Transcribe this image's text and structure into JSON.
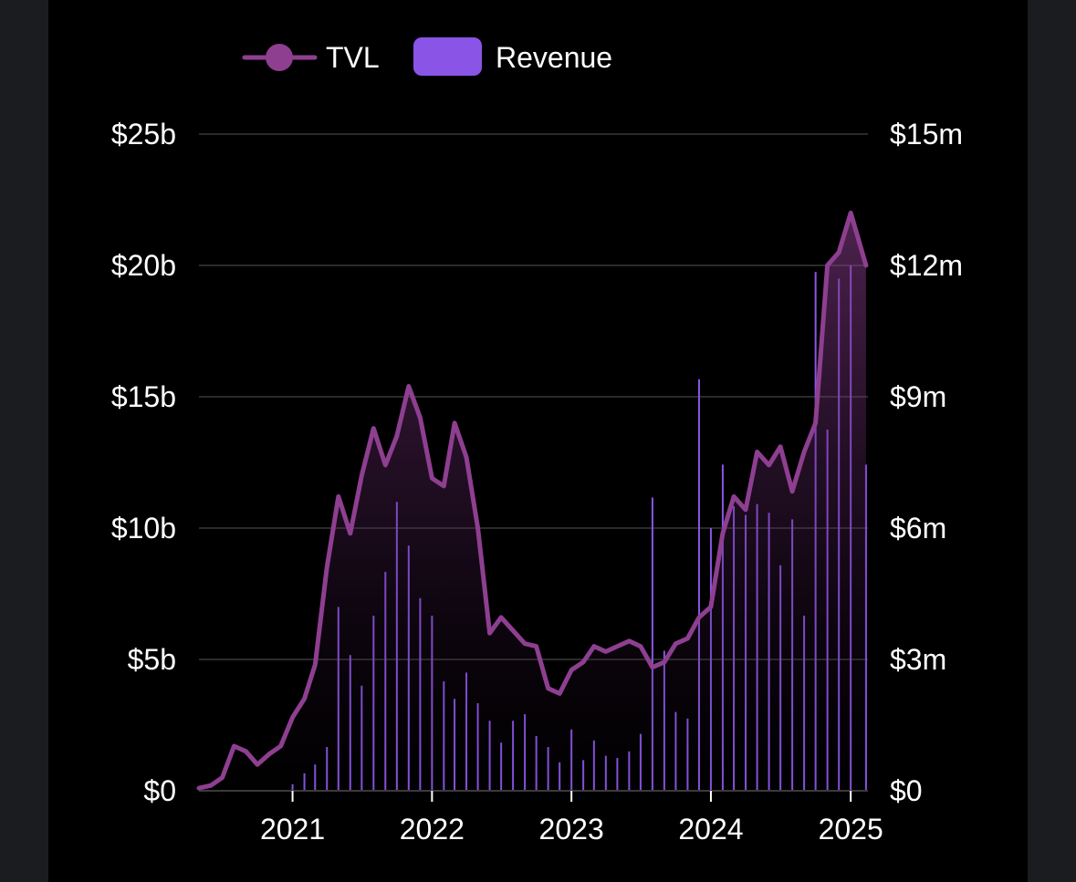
{
  "colors": {
    "tvl": "#8e3f90",
    "revenue": "#8a55e6",
    "grid": "#2b2b2b",
    "text": "#ffffff"
  },
  "legend": {
    "tvl_label": "TVL",
    "revenue_label": "Revenue"
  },
  "chart_data": {
    "type": "line",
    "legend_position": "top",
    "grid": true,
    "y_left": {
      "ticks": [
        "$0",
        "$5b",
        "$10b",
        "$15b",
        "$20b",
        "$25b"
      ],
      "range": [
        0,
        25
      ],
      "unit": "billion USD"
    },
    "y_right": {
      "ticks": [
        "$0",
        "$3m",
        "$6m",
        "$9m",
        "$12m",
        "$15m"
      ],
      "range": [
        0,
        15
      ],
      "unit": "million USD"
    },
    "x_ticks": [
      "2021",
      "2022",
      "2023",
      "2024",
      "2025"
    ],
    "x_range": [
      "2020-05-01",
      "2025-02-15"
    ],
    "series": [
      {
        "name": "TVL",
        "kind": "line-area",
        "axis": "left",
        "points": [
          [
            "2020-05-01",
            0.1
          ],
          [
            "2020-06-01",
            0.2
          ],
          [
            "2020-07-01",
            0.5
          ],
          [
            "2020-08-01",
            1.7
          ],
          [
            "2020-09-01",
            1.5
          ],
          [
            "2020-10-01",
            1.0
          ],
          [
            "2020-11-01",
            1.4
          ],
          [
            "2020-12-01",
            1.7
          ],
          [
            "2021-01-01",
            2.8
          ],
          [
            "2021-02-01",
            3.5
          ],
          [
            "2021-03-01",
            4.8
          ],
          [
            "2021-04-01",
            8.5
          ],
          [
            "2021-05-01",
            11.2
          ],
          [
            "2021-06-01",
            9.8
          ],
          [
            "2021-07-01",
            12.0
          ],
          [
            "2021-08-01",
            13.8
          ],
          [
            "2021-09-01",
            12.4
          ],
          [
            "2021-10-01",
            13.5
          ],
          [
            "2021-11-01",
            15.4
          ],
          [
            "2021-12-01",
            14.2
          ],
          [
            "2022-01-01",
            11.9
          ],
          [
            "2022-02-01",
            11.6
          ],
          [
            "2022-03-01",
            14.0
          ],
          [
            "2022-04-01",
            12.7
          ],
          [
            "2022-05-01",
            10.0
          ],
          [
            "2022-06-01",
            6.0
          ],
          [
            "2022-07-01",
            6.6
          ],
          [
            "2022-08-01",
            6.1
          ],
          [
            "2022-09-01",
            5.6
          ],
          [
            "2022-10-01",
            5.5
          ],
          [
            "2022-11-01",
            3.9
          ],
          [
            "2022-12-01",
            3.7
          ],
          [
            "2023-01-01",
            4.6
          ],
          [
            "2023-02-01",
            4.9
          ],
          [
            "2023-03-01",
            5.5
          ],
          [
            "2023-04-01",
            5.3
          ],
          [
            "2023-05-01",
            5.5
          ],
          [
            "2023-06-01",
            5.7
          ],
          [
            "2023-07-01",
            5.5
          ],
          [
            "2023-08-01",
            4.7
          ],
          [
            "2023-09-01",
            4.9
          ],
          [
            "2023-10-01",
            5.6
          ],
          [
            "2023-11-01",
            5.8
          ],
          [
            "2023-12-01",
            6.6
          ],
          [
            "2024-01-01",
            7.0
          ],
          [
            "2024-02-01",
            9.8
          ],
          [
            "2024-03-01",
            11.2
          ],
          [
            "2024-04-01",
            10.7
          ],
          [
            "2024-05-01",
            12.9
          ],
          [
            "2024-06-01",
            12.4
          ],
          [
            "2024-07-01",
            13.1
          ],
          [
            "2024-08-01",
            11.4
          ],
          [
            "2024-09-01",
            12.9
          ],
          [
            "2024-10-01",
            14.0
          ],
          [
            "2024-11-01",
            20.0
          ],
          [
            "2024-12-01",
            20.5
          ],
          [
            "2025-01-01",
            22.0
          ],
          [
            "2025-02-10",
            20.0
          ]
        ]
      },
      {
        "name": "Revenue",
        "kind": "bar",
        "axis": "right",
        "points": [
          [
            "2021-01-01",
            0.15
          ],
          [
            "2021-02-01",
            0.4
          ],
          [
            "2021-03-01",
            0.6
          ],
          [
            "2021-04-01",
            1.0
          ],
          [
            "2021-05-01",
            4.2
          ],
          [
            "2021-06-01",
            3.1
          ],
          [
            "2021-07-01",
            2.4
          ],
          [
            "2021-08-01",
            4.0
          ],
          [
            "2021-09-01",
            5.0
          ],
          [
            "2021-10-01",
            6.6
          ],
          [
            "2021-11-01",
            5.6
          ],
          [
            "2021-12-01",
            4.4
          ],
          [
            "2022-01-01",
            4.0
          ],
          [
            "2022-02-01",
            2.5
          ],
          [
            "2022-03-01",
            2.1
          ],
          [
            "2022-04-01",
            2.7
          ],
          [
            "2022-05-01",
            2.0
          ],
          [
            "2022-06-01",
            1.6
          ],
          [
            "2022-07-01",
            1.1
          ],
          [
            "2022-08-01",
            1.6
          ],
          [
            "2022-09-01",
            1.75
          ],
          [
            "2022-10-01",
            1.25
          ],
          [
            "2022-11-01",
            1.0
          ],
          [
            "2022-12-01",
            0.65
          ],
          [
            "2023-01-01",
            1.4
          ],
          [
            "2023-02-01",
            0.7
          ],
          [
            "2023-03-01",
            1.15
          ],
          [
            "2023-04-01",
            0.8
          ],
          [
            "2023-05-01",
            0.75
          ],
          [
            "2023-06-01",
            0.9
          ],
          [
            "2023-07-01",
            1.3
          ],
          [
            "2023-08-01",
            6.7
          ],
          [
            "2023-09-01",
            3.2
          ],
          [
            "2023-10-01",
            1.8
          ],
          [
            "2023-11-01",
            1.65
          ],
          [
            "2023-12-01",
            9.4
          ],
          [
            "2024-01-01",
            6.0
          ],
          [
            "2024-02-01",
            7.45
          ],
          [
            "2024-03-01",
            6.5
          ],
          [
            "2024-04-01",
            6.3
          ],
          [
            "2024-05-01",
            6.55
          ],
          [
            "2024-06-01",
            6.35
          ],
          [
            "2024-07-01",
            5.15
          ],
          [
            "2024-08-01",
            6.2
          ],
          [
            "2024-09-01",
            4.0
          ],
          [
            "2024-10-01",
            11.85
          ],
          [
            "2024-11-01",
            8.25
          ],
          [
            "2024-12-01",
            11.7
          ],
          [
            "2025-01-01",
            12.0
          ],
          [
            "2025-02-10",
            7.45
          ]
        ]
      }
    ]
  }
}
